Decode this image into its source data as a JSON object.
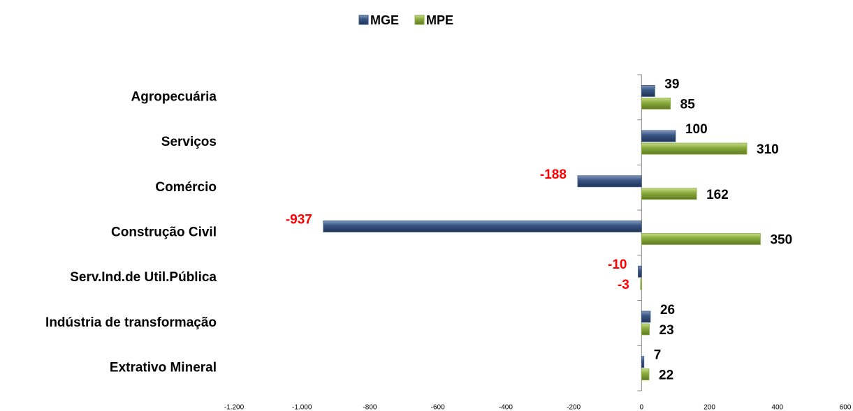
{
  "chart_data": {
    "type": "hbar",
    "categories": [
      "Agropecuária",
      "Serviços",
      "Comércio",
      "Construção Civil",
      "Serv.Ind.de Util.Pública",
      "Indústria de transformação",
      "Extrativo Mineral"
    ],
    "series": [
      {
        "name": "MGE",
        "color": "#3b5784",
        "values": [
          39,
          100,
          -188,
          -937,
          -10,
          26,
          7
        ]
      },
      {
        "name": "MPE",
        "color": "#8cad3f",
        "values": [
          85,
          310,
          162,
          350,
          -3,
          23,
          22
        ]
      }
    ],
    "xlim": [
      -1200,
      600
    ],
    "xticks": [
      {
        "value": -1200,
        "label": "-1.200"
      },
      {
        "value": -1000,
        "label": "-1.000"
      },
      -800,
      -600,
      -400,
      -200,
      0,
      200,
      400,
      600
    ],
    "negative_label_color": "#ff0000",
    "legend": "top",
    "grid": false
  }
}
